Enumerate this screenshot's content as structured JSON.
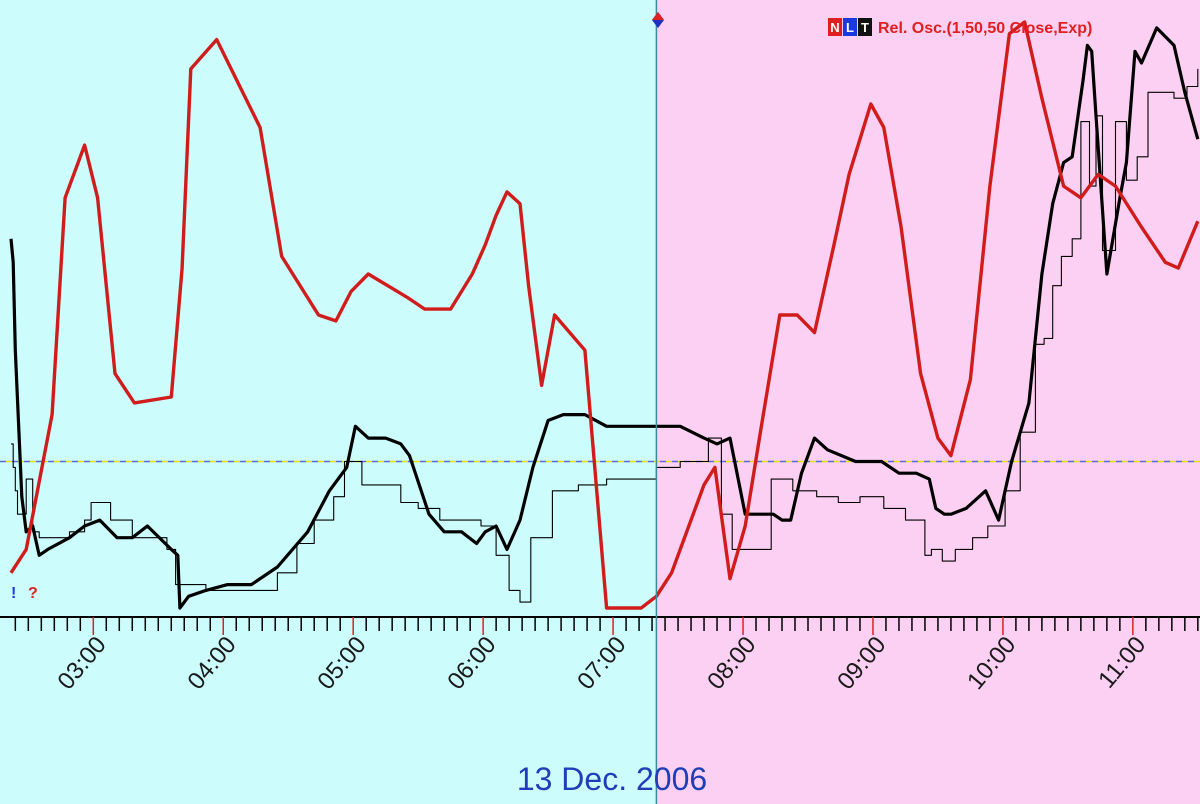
{
  "legend": {
    "badges": [
      "N",
      "L",
      "T"
    ],
    "text": "Rel. Osc.(1,50,50 Close,Exp)"
  },
  "date_label": "13 Dec. 2006",
  "markers": {
    "bang": "!",
    "question": "?"
  },
  "colors": {
    "bg_left": "#ccfcfc",
    "bg_right": "#fcd0f2",
    "red_line": "#d11c1c",
    "black_line": "#000000",
    "cursor_line": "#3a8a9a",
    "zero_line_yellow": "#e8e000",
    "zero_line_blue": "#5a6ad0",
    "badge_n": "#e02020",
    "badge_l": "#1a3ae0",
    "badge_t": "#111111",
    "date_text": "#1f3fb8",
    "tick_red": "#e02020"
  },
  "chart_data": {
    "type": "line",
    "title": "Rel. Osc.(1,50,50 Close,Exp)",
    "date": "13 Dec. 2006",
    "xlabel": "",
    "ylabel": "",
    "x_range": [
      "02:23",
      "11:32"
    ],
    "y_range": [
      0,
      100
    ],
    "grid": false,
    "legend_position": "top-right",
    "x_tick_labels": [
      "03:00",
      "04:00",
      "05:00",
      "06:00",
      "07:00",
      "08:00",
      "09:00",
      "10:00",
      "11:00"
    ],
    "cursor_time": "07:21",
    "reference_level": 25,
    "session_split_time": "07:21",
    "series": [
      {
        "style": "red-thick",
        "x": [
          "02:23",
          "02:30",
          "02:42",
          "02:48",
          "02:57",
          "03:03",
          "03:11",
          "03:20",
          "03:37",
          "03:42",
          "03:46",
          "03:58",
          "04:18",
          "04:28",
          "04:45",
          "04:53",
          "05:00",
          "05:08",
          "05:17",
          "05:26",
          "05:34",
          "05:46",
          "05:56",
          "06:02",
          "06:07",
          "06:12",
          "06:18",
          "06:22",
          "06:28",
          "06:34",
          "06:48",
          "06:58",
          "07:02",
          "07:14",
          "07:21",
          "07:28",
          "07:35",
          "07:43",
          "07:48",
          "07:55",
          "08:02",
          "08:09",
          "08:18",
          "08:26",
          "08:34",
          "08:43",
          "08:50",
          "09:00",
          "09:06",
          "09:14",
          "09:23",
          "09:31",
          "09:37",
          "09:46",
          "09:55",
          "10:04",
          "10:11",
          "10:19",
          "10:29",
          "10:37",
          "10:45",
          "10:53",
          "11:05",
          "11:16",
          "11:22",
          "11:31"
        ],
        "y": [
          6,
          10,
          33,
          70,
          79,
          70,
          40,
          35,
          36,
          58,
          92,
          97,
          82,
          60,
          50,
          49,
          54,
          57,
          55,
          53,
          51,
          51,
          57,
          62,
          67,
          71,
          69,
          55,
          38,
          50,
          44,
          0,
          0,
          0,
          2,
          6,
          13,
          21,
          24,
          5,
          14,
          30,
          50,
          50,
          47,
          62,
          74,
          86,
          82,
          65,
          40,
          29,
          26,
          39,
          72,
          98,
          100,
          87,
          72,
          70,
          74,
          72,
          65,
          59,
          58,
          66
        ]
      },
      {
        "style": "black-thick",
        "x": [
          "02:23",
          "02:24",
          "02:25",
          "02:28",
          "02:30",
          "02:33",
          "02:36",
          "02:40",
          "02:50",
          "02:57",
          "03:04",
          "03:12",
          "03:19",
          "03:26",
          "03:37",
          "03:40",
          "03:41",
          "03:45",
          "03:53",
          "04:03",
          "04:14",
          "04:26",
          "04:40",
          "04:50",
          "04:58",
          "05:02",
          "05:08",
          "05:16",
          "05:23",
          "05:27",
          "05:36",
          "05:43",
          "05:51",
          "05:58",
          "06:02",
          "06:07",
          "06:12",
          "06:18",
          "06:24",
          "06:31",
          "06:38",
          "06:48",
          "06:58",
          "07:10",
          "07:21",
          "07:32",
          "07:43",
          "07:49",
          "07:55",
          "08:02",
          "08:09",
          "08:15",
          "08:19",
          "08:23",
          "08:28",
          "08:34",
          "08:40",
          "08:53",
          "09:05",
          "09:13",
          "09:21",
          "09:27",
          "09:30",
          "09:34",
          "09:37",
          "09:44",
          "09:53",
          "09:59",
          "10:05",
          "10:13",
          "10:19",
          "10:24",
          "10:29",
          "10:33",
          "10:38",
          "10:40",
          "10:42",
          "10:44",
          "10:49",
          "10:55",
          "10:58",
          "11:02",
          "11:05",
          "11:12",
          "11:20",
          "11:25",
          "11:31"
        ],
        "y": [
          63,
          59,
          44,
          19,
          13,
          14,
          9,
          10,
          12,
          14,
          15,
          12,
          12,
          14,
          10,
          9,
          0,
          2,
          3,
          4,
          4,
          7,
          13,
          20,
          24,
          31,
          29,
          29,
          28,
          26,
          16,
          13,
          13,
          11,
          13,
          14,
          10,
          15,
          24,
          32,
          33,
          33,
          31,
          31,
          31,
          31,
          29,
          28,
          29,
          16,
          16,
          16,
          15,
          15,
          23,
          29,
          27,
          25,
          25,
          23,
          23,
          22,
          17,
          16,
          16,
          17,
          20,
          15,
          25,
          35,
          57,
          69,
          76,
          77,
          90,
          96,
          95,
          84,
          57,
          70,
          76,
          95,
          93,
          99,
          96,
          88,
          80
        ]
      },
      {
        "style": "black-thin-step",
        "x": [
          "02:23",
          "02:24",
          "02:25",
          "02:26",
          "02:28",
          "02:30",
          "02:33",
          "02:36",
          "02:40",
          "02:50",
          "02:57",
          "03:00",
          "03:09",
          "03:19",
          "03:27",
          "03:35",
          "03:39",
          "03:42",
          "03:53",
          "04:05",
          "04:14",
          "04:26",
          "04:35",
          "04:43",
          "04:52",
          "04:57",
          "05:05",
          "05:14",
          "05:23",
          "05:31",
          "05:41",
          "05:52",
          "06:00",
          "06:07",
          "06:13",
          "06:18",
          "06:23",
          "06:33",
          "06:45",
          "06:58",
          "07:07",
          "07:21",
          "07:32",
          "07:45",
          "07:51",
          "07:56",
          "08:04",
          "08:14",
          "08:24",
          "08:35",
          "08:45",
          "08:55",
          "09:06",
          "09:16",
          "09:21",
          "09:25",
          "09:28",
          "09:33",
          "09:39",
          "09:47",
          "09:54",
          "10:02",
          "10:09",
          "10:16",
          "10:20",
          "10:24",
          "10:28",
          "10:33",
          "10:37",
          "10:41",
          "10:44",
          "10:47",
          "10:53",
          "10:58",
          "11:03",
          "11:08",
          "11:14",
          "11:20",
          "11:26",
          "11:31"
        ],
        "y": [
          28,
          24,
          20,
          16,
          16,
          22,
          13,
          12,
          12,
          13,
          15,
          18,
          15,
          12,
          12,
          10,
          4,
          4,
          3,
          3,
          3,
          6,
          11,
          15,
          19,
          25,
          21,
          21,
          18,
          17,
          15,
          15,
          14,
          9,
          3,
          1,
          12,
          20,
          21,
          22,
          22,
          24,
          25,
          29,
          16,
          10,
          10,
          22,
          20,
          19,
          18,
          19,
          17,
          15,
          15,
          9,
          10,
          8,
          10,
          12,
          14,
          20,
          30,
          45,
          46,
          55,
          60,
          63,
          83,
          72,
          84,
          61,
          83,
          73,
          77,
          88,
          88,
          87,
          89,
          92
        ]
      }
    ]
  }
}
